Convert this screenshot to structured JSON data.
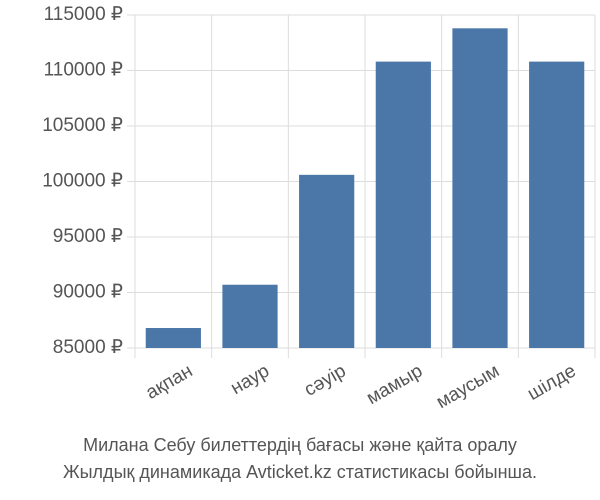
{
  "chart_data": {
    "type": "bar",
    "title": "Милана Себу билеттердің бағасы және қайта оралу",
    "subtitle": "Жылдық динамикада Avticket.kz статистикасы бойынша.",
    "categories": [
      "ақпан",
      "наур",
      "сәуір",
      "мамыр",
      "маусым",
      "шілде"
    ],
    "values": [
      86800,
      90700,
      100600,
      110800,
      113800,
      110800
    ],
    "color": "#4a76a8",
    "ylim": [
      85000,
      115000
    ],
    "yticks": [
      {
        "value": 85000,
        "label": "85000 ₽"
      },
      {
        "value": 90000,
        "label": "90000 ₽"
      },
      {
        "value": 95000,
        "label": "95000 ₽"
      },
      {
        "value": 100000,
        "label": "100000 ₽"
      },
      {
        "value": 105000,
        "label": "105000 ₽"
      },
      {
        "value": 110000,
        "label": "110000 ₽"
      },
      {
        "value": 115000,
        "label": "115000 ₽"
      }
    ],
    "grid": true
  }
}
